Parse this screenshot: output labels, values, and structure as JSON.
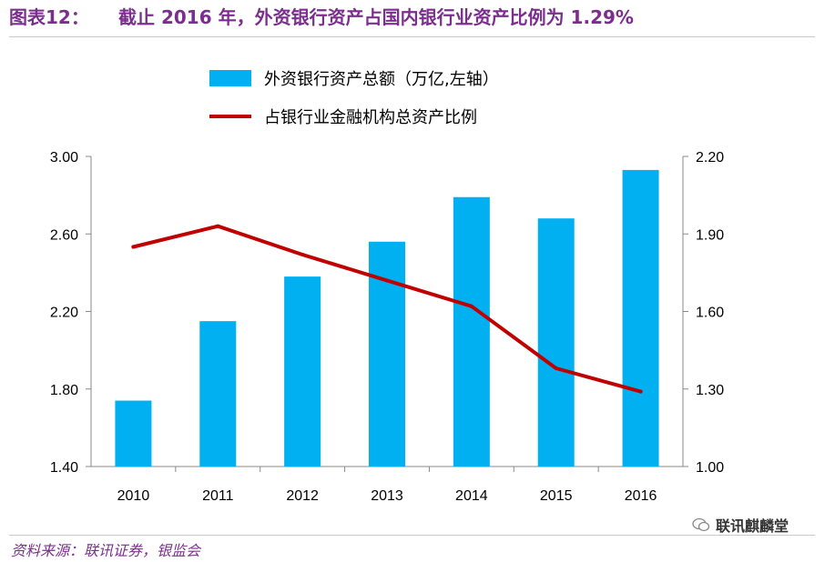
{
  "header": {
    "label": "图表12：",
    "title": "截止 2016 年，外资银行资产占国内银行业资产比例为 1.29%"
  },
  "source": "资料来源：联讯证券，银监会",
  "watermark": {
    "text": "联讯麒麟堂",
    "icon": "wechat-icon"
  },
  "colors": {
    "bar": "#00b0f0",
    "line": "#c00000",
    "title": "#7b2e8e"
  },
  "chart_data": {
    "type": "bar+line",
    "categories": [
      "2010",
      "2011",
      "2012",
      "2013",
      "2014",
      "2015",
      "2016"
    ],
    "series": [
      {
        "name": "外资银行资产总额（万亿,左轴）",
        "type": "bar",
        "axis": "left",
        "values": [
          1.74,
          2.15,
          2.38,
          2.56,
          2.79,
          2.68,
          2.93
        ]
      },
      {
        "name": "占银行业金融机构总资产比例",
        "type": "line",
        "axis": "right",
        "values": [
          1.85,
          1.93,
          1.82,
          1.72,
          1.62,
          1.38,
          1.29
        ]
      }
    ],
    "left_axis": {
      "ylim": [
        1.4,
        3.0
      ],
      "ticks": [
        "1.40",
        "1.80",
        "2.20",
        "2.60",
        "3.00"
      ]
    },
    "right_axis": {
      "ylim": [
        1.0,
        2.2
      ],
      "ticks": [
        "1.00",
        "1.30",
        "1.60",
        "1.90",
        "2.20"
      ]
    },
    "legend_position": "top"
  }
}
